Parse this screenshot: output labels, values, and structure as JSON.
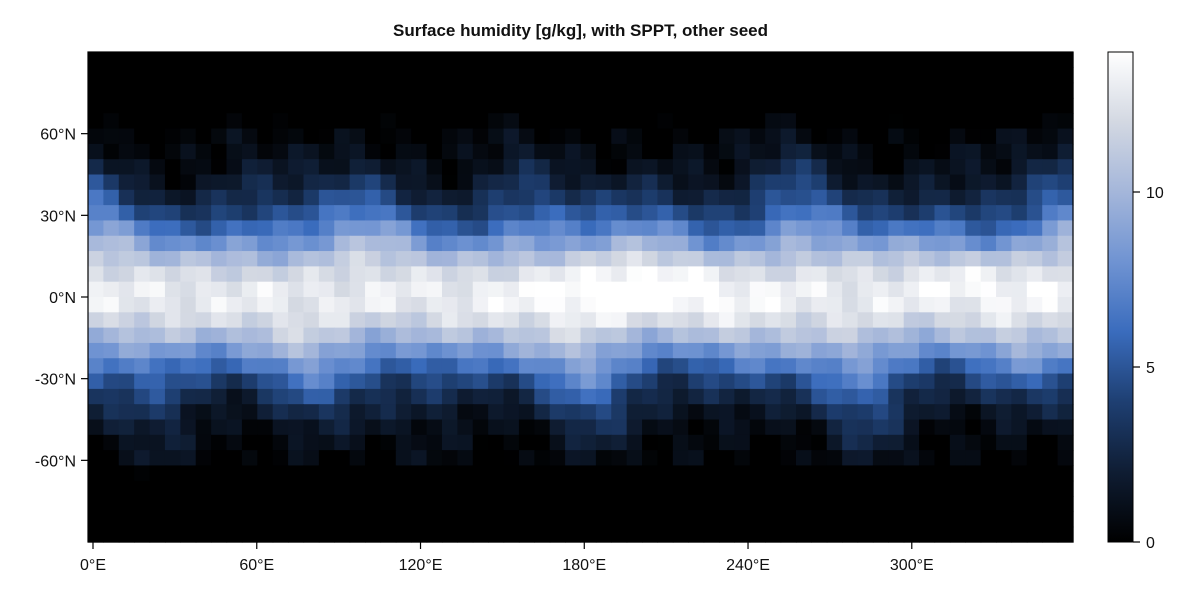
{
  "chart_data": {
    "type": "heatmap",
    "title": "Surface humidity [g/kg], with SPPT, other seed",
    "xlabel": "",
    "ylabel": "",
    "x_range": [
      0,
      360
    ],
    "y_range": [
      -90,
      90
    ],
    "x_ticks": [
      {
        "value": 0,
        "label": "0°E"
      },
      {
        "value": 60,
        "label": "60°E"
      },
      {
        "value": 120,
        "label": "120°E"
      },
      {
        "value": 180,
        "label": "180°E"
      },
      {
        "value": 240,
        "label": "240°E"
      },
      {
        "value": 300,
        "label": "300°E"
      }
    ],
    "y_ticks": [
      {
        "value": 60,
        "label": "60°N"
      },
      {
        "value": 30,
        "label": "30°N"
      },
      {
        "value": 0,
        "label": "0°N"
      },
      {
        "value": -30,
        "label": "-30°N"
      },
      {
        "value": -60,
        "label": "-60°N"
      }
    ],
    "colorbar": {
      "range": [
        0,
        14
      ],
      "ticks": [
        {
          "value": 0,
          "label": "0"
        },
        {
          "value": 5,
          "label": "5"
        },
        {
          "value": 10,
          "label": "10"
        }
      ],
      "colormap": [
        "#000000",
        "#0f1d33",
        "#1e3f72",
        "#3a6cbd",
        "#6f93d2",
        "#a4b6da",
        "#d3d8e2",
        "#ffffff"
      ]
    },
    "grid": false
  }
}
